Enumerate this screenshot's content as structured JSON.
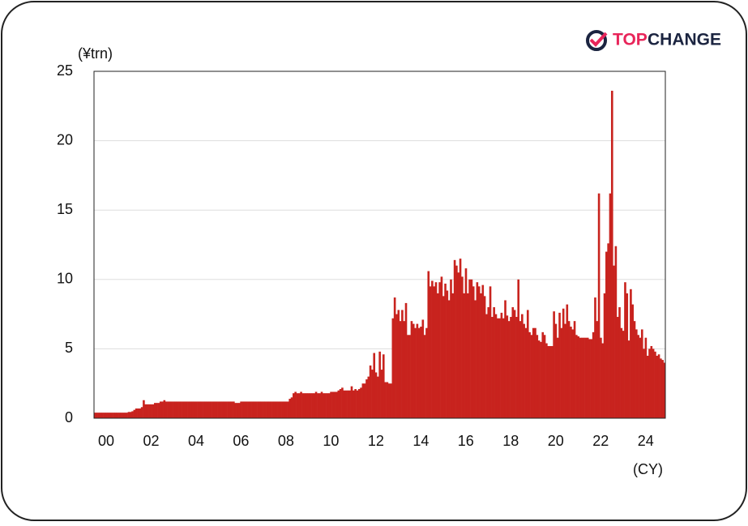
{
  "brand": {
    "part1": "TOP",
    "part2": "CHANGE"
  },
  "chart_data": {
    "type": "bar",
    "y_axis_label": "(¥trn)",
    "x_axis_label": "(CY)",
    "color": "#c8231e",
    "ylim": [
      0,
      25
    ],
    "yticks": [
      0,
      5,
      10,
      15,
      20,
      25
    ],
    "grid": true,
    "categories": [
      null,
      null,
      null,
      null,
      null,
      null,
      "00",
      null,
      null,
      null,
      null,
      null,
      null,
      null,
      null,
      null,
      null,
      null,
      null,
      null,
      null,
      null,
      null,
      null,
      null,
      null,
      null,
      null,
      null,
      null,
      "02",
      null,
      null,
      null,
      null,
      null,
      null,
      null,
      null,
      null,
      null,
      null,
      null,
      null,
      null,
      null,
      null,
      null,
      null,
      null,
      null,
      null,
      null,
      null,
      "04",
      null,
      null,
      null,
      null,
      null,
      null,
      null,
      null,
      null,
      null,
      null,
      null,
      null,
      null,
      null,
      null,
      null,
      null,
      null,
      null,
      null,
      null,
      null,
      "06",
      null,
      null,
      null,
      null,
      null,
      null,
      null,
      null,
      null,
      null,
      null,
      null,
      null,
      null,
      null,
      null,
      null,
      null,
      null,
      null,
      null,
      null,
      null,
      "08",
      null,
      null,
      null,
      null,
      null,
      null,
      null,
      null,
      null,
      null,
      null,
      null,
      null,
      null,
      null,
      null,
      null,
      null,
      null,
      null,
      null,
      null,
      null,
      "10",
      null,
      null,
      null,
      null,
      null,
      null,
      null,
      null,
      null,
      null,
      null,
      null,
      null,
      null,
      null,
      null,
      null,
      null,
      null,
      null,
      null,
      null,
      null,
      "12",
      null,
      null,
      null,
      null,
      null,
      null,
      null,
      null,
      null,
      null,
      null,
      null,
      null,
      null,
      null,
      null,
      null,
      null,
      null,
      null,
      null,
      null,
      null,
      "14",
      null,
      null,
      null,
      null,
      null,
      null,
      null,
      null,
      null,
      null,
      null,
      null,
      null,
      null,
      null,
      null,
      null,
      null,
      null,
      null,
      null,
      null,
      null,
      "16",
      null,
      null,
      null,
      null,
      null,
      null,
      null,
      null,
      null,
      null,
      null,
      null,
      null,
      null,
      null,
      null,
      null,
      null,
      null,
      null,
      null,
      null,
      null,
      "18",
      null,
      null,
      null,
      null,
      null,
      null,
      null,
      null,
      null,
      null,
      null,
      null,
      null,
      null,
      null,
      null,
      null,
      null,
      null,
      null,
      null,
      null,
      null,
      "20",
      null,
      null,
      null,
      null,
      null,
      null,
      null,
      null,
      null,
      null,
      null,
      null,
      null,
      null,
      null,
      null,
      null,
      null,
      null,
      null,
      null,
      null,
      null,
      "22",
      null,
      null,
      null,
      null,
      null,
      null,
      null,
      null,
      null,
      null,
      null,
      null,
      null,
      null,
      null,
      null,
      null,
      null,
      null,
      null,
      null,
      null,
      null,
      "24",
      null,
      null,
      null,
      null,
      null,
      null,
      null,
      null,
      null,
      null
    ],
    "values": [
      0.4,
      0.4,
      0.4,
      0.4,
      0.4,
      0.4,
      0.4,
      0.4,
      0.4,
      0.4,
      0.4,
      0.4,
      0.4,
      0.4,
      0.4,
      0.4,
      0.4,
      0.4,
      0.45,
      0.45,
      0.5,
      0.6,
      0.7,
      0.7,
      0.7,
      0.8,
      1.3,
      1.0,
      1.0,
      1.0,
      1.0,
      1.0,
      1.1,
      1.1,
      1.1,
      1.2,
      1.2,
      1.3,
      1.2,
      1.2,
      1.2,
      1.2,
      1.2,
      1.2,
      1.2,
      1.2,
      1.2,
      1.2,
      1.2,
      1.2,
      1.2,
      1.2,
      1.2,
      1.2,
      1.2,
      1.2,
      1.2,
      1.2,
      1.2,
      1.2,
      1.2,
      1.2,
      1.2,
      1.2,
      1.2,
      1.2,
      1.2,
      1.2,
      1.2,
      1.2,
      1.2,
      1.2,
      1.2,
      1.2,
      1.2,
      1.1,
      1.1,
      1.1,
      1.2,
      1.2,
      1.2,
      1.2,
      1.2,
      1.2,
      1.2,
      1.2,
      1.2,
      1.2,
      1.2,
      1.2,
      1.2,
      1.2,
      1.2,
      1.2,
      1.2,
      1.2,
      1.2,
      1.2,
      1.2,
      1.2,
      1.2,
      1.2,
      1.2,
      1.2,
      1.4,
      1.5,
      1.8,
      1.9,
      1.8,
      1.8,
      1.9,
      1.8,
      1.8,
      1.8,
      1.8,
      1.8,
      1.8,
      1.8,
      1.9,
      1.8,
      1.8,
      1.9,
      1.8,
      1.8,
      1.8,
      1.8,
      1.9,
      1.9,
      1.9,
      1.9,
      2.0,
      2.1,
      2.2,
      2.0,
      2.0,
      2.0,
      2.0,
      2.3,
      2.0,
      2.1,
      2.0,
      2.1,
      2.2,
      2.5,
      2.5,
      2.8,
      3.0,
      3.8,
      3.5,
      4.7,
      3.3,
      3.0,
      4.8,
      3.5,
      4.6,
      2.6,
      2.6,
      2.5,
      2.5,
      7.2,
      8.7,
      7.5,
      7.8,
      7.0,
      7.8,
      7.0,
      8.3,
      6.0,
      6.0,
      7.0,
      6.8,
      6.5,
      6.8,
      6.5,
      6.6,
      7.1,
      6.0,
      6.5,
      10.6,
      9.5,
      9.9,
      9.5,
      9.8,
      9.0,
      9.8,
      10.2,
      8.8,
      9.7,
      9.2,
      8.5,
      10.0,
      9.0,
      11.4,
      11.0,
      10.5,
      11.5,
      10.2,
      9.0,
      10.8,
      9.0,
      10.0,
      10.0,
      9.5,
      8.5,
      9.8,
      9.5,
      9.0,
      9.6,
      8.8,
      7.5,
      8.0,
      9.5,
      7.3,
      8.0,
      7.5,
      7.2,
      7.2,
      7.6,
      7.2,
      8.5,
      7.4,
      7.0,
      7.3,
      8.0,
      7.8,
      7.3,
      10.0,
      7.0,
      7.5,
      6.8,
      6.5,
      7.8,
      6.2,
      6.0,
      6.5,
      6.5,
      6.0,
      5.6,
      5.5,
      6.2,
      6.0,
      5.4,
      5.2,
      5.2,
      5.2,
      7.7,
      6.8,
      5.8,
      7.6,
      6.5,
      7.9,
      6.8,
      8.2,
      7.0,
      6.6,
      6.4,
      7.0,
      6.0,
      5.9,
      5.8,
      5.8,
      5.8,
      5.8,
      5.8,
      5.7,
      5.7,
      6.2,
      8.7,
      7.0,
      16.2,
      5.8,
      5.4,
      9.0,
      12.0,
      12.6,
      16.2,
      23.6,
      11.0,
      12.4,
      7.3,
      8.0,
      6.5,
      6.3,
      9.8,
      9.0,
      5.6,
      9.3,
      8.2,
      7.0,
      6.4,
      6.0,
      5.8,
      6.4,
      5.0,
      5.8,
      4.5,
      5.0,
      5.2,
      5.0,
      4.8,
      4.5,
      4.6,
      4.3,
      4.2,
      4.0
    ]
  }
}
